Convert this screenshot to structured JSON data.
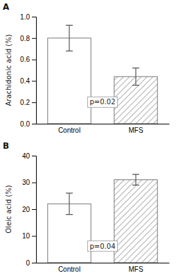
{
  "chart_data": [
    {
      "type": "bar",
      "title": "A",
      "ylabel": "Arachidonic acid (%)",
      "categories": [
        "Control",
        "MFS"
      ],
      "values": [
        0.8,
        0.44
      ],
      "errors": [
        0.12,
        0.08
      ],
      "color": "white",
      "ylim": [
        0,
        1.0
      ],
      "yticks": [
        {
          "value": 0.0,
          "label": "0.0"
        },
        0.2,
        0.4,
        0.6,
        0.8,
        {
          "value": 1.0,
          "label": "1.0"
        }
      ],
      "grid": false,
      "annotations": [
        {
          "text": "p=0.02",
          "y": 0.16
        }
      ]
    },
    {
      "type": "bar",
      "title": "B",
      "ylabel": "Oleic acid (%)",
      "categories": [
        "Control",
        "MFS"
      ],
      "values": [
        22.0,
        31.0
      ],
      "errors": [
        4.0,
        2.0
      ],
      "color": "white",
      "ylim": [
        0,
        40
      ],
      "yticks": [
        0,
        10,
        20,
        30,
        40
      ],
      "grid": false,
      "annotations": [
        {
          "text": "p=0.04",
          "y": 4.5
        }
      ]
    }
  ]
}
